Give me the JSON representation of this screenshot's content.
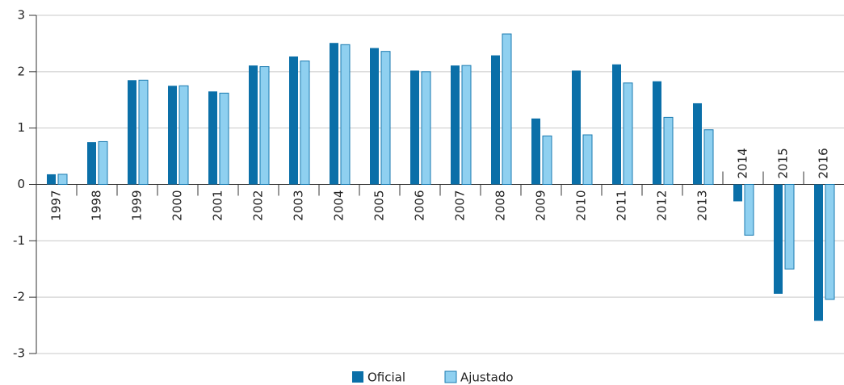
{
  "chart_data": {
    "type": "bar",
    "categories": [
      "1997",
      "1998",
      "1999",
      "2000",
      "2001",
      "2002",
      "2003",
      "2004",
      "2005",
      "2006",
      "2007",
      "2008",
      "2009",
      "2010",
      "2011",
      "2012",
      "2013",
      "2014",
      "2015",
      "2016"
    ],
    "series": [
      {
        "name": "Oficial",
        "color": "#0a6fa8",
        "values": [
          0.18,
          0.75,
          1.85,
          1.75,
          1.65,
          2.11,
          2.27,
          2.51,
          2.42,
          2.02,
          2.11,
          2.29,
          1.17,
          2.02,
          2.13,
          1.83,
          1.44,
          -0.3,
          -1.94,
          -2.42
        ]
      },
      {
        "name": "Ajustado",
        "color": "#8fd0f0",
        "values": [
          0.18,
          0.76,
          1.85,
          1.75,
          1.62,
          2.09,
          2.19,
          2.48,
          2.36,
          2.0,
          2.11,
          2.67,
          0.86,
          0.88,
          1.8,
          1.19,
          0.97,
          -0.9,
          -1.5,
          -2.04
        ]
      }
    ],
    "ylim": [
      -3,
      3
    ],
    "yticks": [
      -3,
      -2,
      -1,
      0,
      1,
      2,
      3
    ],
    "grid": true
  }
}
